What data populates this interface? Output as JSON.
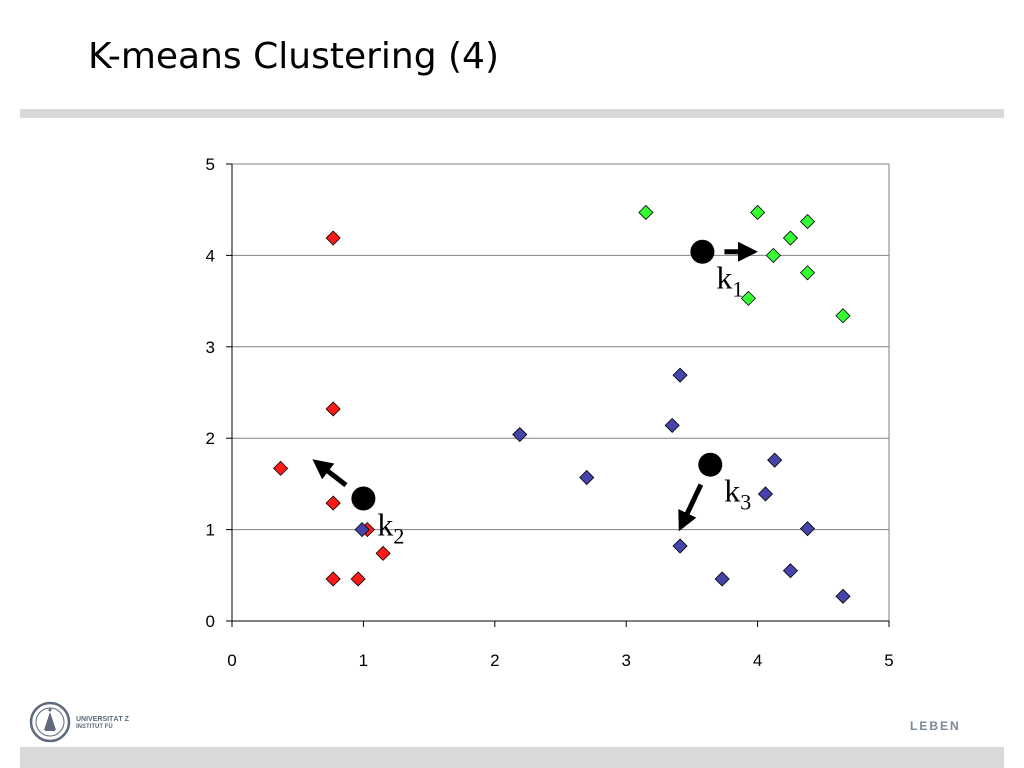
{
  "slide": {
    "title": "K-means Clustering (4)",
    "footer_logo_line1": "UNIVERSITÄT Z",
    "footer_logo_line2": "INSTITUT FÜ",
    "footer_tagline": "LEBEN",
    "logo_icon": "university-seal-icon"
  },
  "colors": {
    "accent_rule": "#d9d9d9",
    "cluster1": "#33ff33",
    "cluster2": "#ff1a1a",
    "cluster3": "#4444aa",
    "centroid": "#000000"
  },
  "chart_data": {
    "type": "scatter",
    "title": "",
    "xlabel": "",
    "ylabel": "",
    "xlim": [
      0,
      5
    ],
    "ylim": [
      0,
      5
    ],
    "xticks": [
      "0",
      "1",
      "2",
      "3",
      "4",
      "5"
    ],
    "yticks": [
      "0",
      "1",
      "2",
      "3",
      "4",
      "5"
    ],
    "grid": "horizontal",
    "legend": "none",
    "series": [
      {
        "cluster": "k1",
        "color": "#33ff33",
        "points": [
          [
            3.15,
            4.47
          ],
          [
            4.0,
            4.47
          ],
          [
            4.38,
            4.37
          ],
          [
            4.25,
            4.19
          ],
          [
            4.12,
            4.0
          ],
          [
            4.38,
            3.81
          ],
          [
            3.93,
            3.53
          ],
          [
            4.65,
            3.34
          ]
        ]
      },
      {
        "cluster": "k2",
        "color": "#ff1a1a",
        "points": [
          [
            0.77,
            4.19
          ],
          [
            0.77,
            2.32
          ],
          [
            0.37,
            1.67
          ],
          [
            0.77,
            1.29
          ],
          [
            1.03,
            1.0
          ],
          [
            1.15,
            0.74
          ],
          [
            0.77,
            0.46
          ],
          [
            0.96,
            0.46
          ]
        ]
      },
      {
        "cluster": "k3",
        "color": "#4444aa",
        "points": [
          [
            0.99,
            1.0
          ],
          [
            2.19,
            2.04
          ],
          [
            2.7,
            1.57
          ],
          [
            3.41,
            2.69
          ],
          [
            3.35,
            2.14
          ],
          [
            4.13,
            1.76
          ],
          [
            4.06,
            1.39
          ],
          [
            4.38,
            1.01
          ],
          [
            3.41,
            0.82
          ],
          [
            3.73,
            0.46
          ],
          [
            4.25,
            0.55
          ],
          [
            4.65,
            0.27
          ]
        ]
      }
    ],
    "centroids": [
      {
        "label": "k",
        "subscript": "1",
        "x": 3.58,
        "y": 4.04,
        "arrow_to": [
          3.98,
          4.04
        ]
      },
      {
        "label": "k",
        "subscript": "2",
        "x": 1.0,
        "y": 1.34,
        "arrow_to": [
          0.63,
          1.75
        ]
      },
      {
        "label": "k",
        "subscript": "3",
        "x": 3.64,
        "y": 1.71,
        "arrow_to": [
          3.41,
          1.01
        ]
      }
    ]
  }
}
